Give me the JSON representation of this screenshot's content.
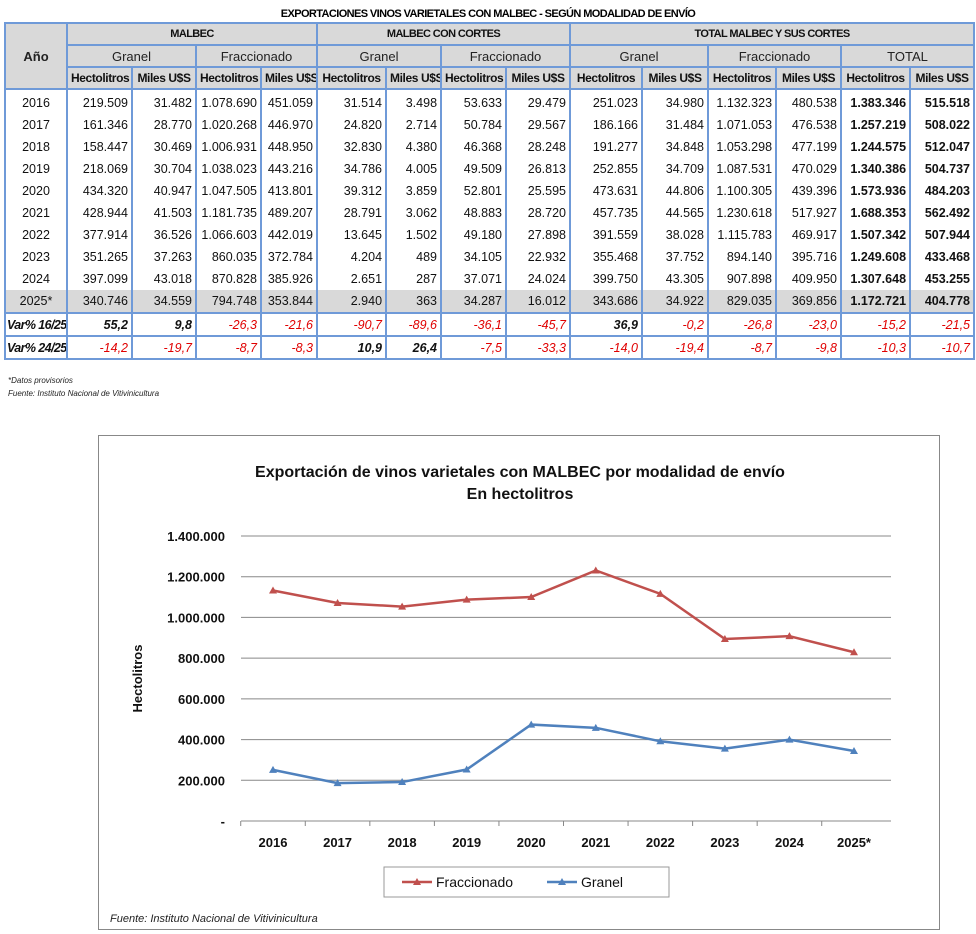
{
  "table": {
    "title": "EXPORTACIONES VINOS VARIETALES CON MALBEC - SEGÚN MODALIDAD DE ENVÍO",
    "year_header": "Año",
    "groups": [
      "MALBEC",
      "MALBEC CON CORTES",
      "TOTAL MALBEC Y SUS CORTES"
    ],
    "subgroups": [
      "Granel",
      "Fraccionado",
      "Granel",
      "Fraccionado",
      "Granel",
      "Fraccionado",
      "TOTAL"
    ],
    "columns": [
      "Hectolitros",
      "Miles U$S",
      "Hectolitros",
      "Miles U$S",
      "Hectolitros",
      "Miles U$S",
      "Hectolitros",
      "Miles U$S",
      "Hectolitros",
      "Miles U$S",
      "Hectolitros",
      "Miles U$S",
      "Hectolitros",
      "Miles U$S"
    ],
    "rows": [
      [
        "2016",
        "219.509",
        "31.482",
        "1.078.690",
        "451.059",
        "31.514",
        "3.498",
        "53.633",
        "29.479",
        "251.023",
        "34.980",
        "1.132.323",
        "480.538",
        "1.383.346",
        "515.518"
      ],
      [
        "2017",
        "161.346",
        "28.770",
        "1.020.268",
        "446.970",
        "24.820",
        "2.714",
        "50.784",
        "29.567",
        "186.166",
        "31.484",
        "1.071.053",
        "476.538",
        "1.257.219",
        "508.022"
      ],
      [
        "2018",
        "158.447",
        "30.469",
        "1.006.931",
        "448.950",
        "32.830",
        "4.380",
        "46.368",
        "28.248",
        "191.277",
        "34.848",
        "1.053.298",
        "477.199",
        "1.244.575",
        "512.047"
      ],
      [
        "2019",
        "218.069",
        "30.704",
        "1.038.023",
        "443.216",
        "34.786",
        "4.005",
        "49.509",
        "26.813",
        "252.855",
        "34.709",
        "1.087.531",
        "470.029",
        "1.340.386",
        "504.737"
      ],
      [
        "2020",
        "434.320",
        "40.947",
        "1.047.505",
        "413.801",
        "39.312",
        "3.859",
        "52.801",
        "25.595",
        "473.631",
        "44.806",
        "1.100.305",
        "439.396",
        "1.573.936",
        "484.203"
      ],
      [
        "2021",
        "428.944",
        "41.503",
        "1.181.735",
        "489.207",
        "28.791",
        "3.062",
        "48.883",
        "28.720",
        "457.735",
        "44.565",
        "1.230.618",
        "517.927",
        "1.688.353",
        "562.492"
      ],
      [
        "2022",
        "377.914",
        "36.526",
        "1.066.603",
        "442.019",
        "13.645",
        "1.502",
        "49.180",
        "27.898",
        "391.559",
        "38.028",
        "1.115.783",
        "469.917",
        "1.507.342",
        "507.944"
      ],
      [
        "2023",
        "351.265",
        "37.263",
        "860.035",
        "372.784",
        "4.204",
        "489",
        "34.105",
        "22.932",
        "355.468",
        "37.752",
        "894.140",
        "395.716",
        "1.249.608",
        "433.468"
      ],
      [
        "2024",
        "397.099",
        "43.018",
        "870.828",
        "385.926",
        "2.651",
        "287",
        "37.071",
        "24.024",
        "399.750",
        "43.305",
        "907.898",
        "409.950",
        "1.307.648",
        "453.255"
      ],
      [
        "2025*",
        "340.746",
        "34.559",
        "794.748",
        "353.844",
        "2.940",
        "363",
        "34.287",
        "16.012",
        "343.686",
        "34.922",
        "829.035",
        "369.856",
        "1.172.721",
        "404.778"
      ]
    ],
    "variations": [
      [
        "Var% 16/25",
        "55,2",
        "9,8",
        "-26,3",
        "-21,6",
        "-90,7",
        "-89,6",
        "-36,1",
        "-45,7",
        "36,9",
        "-0,2",
        "-26,8",
        "-23,0",
        "-15,2",
        "-21,5"
      ],
      [
        "Var% 24/25",
        "-14,2",
        "-19,7",
        "-8,7",
        "-8,3",
        "10,9",
        "26,4",
        "-7,5",
        "-33,3",
        "-14,0",
        "-19,4",
        "-8,7",
        "-9,8",
        "-10,3",
        "-10,7"
      ]
    ],
    "footnote": "*Datos provisorios",
    "source": "Fuente: Instituto Nacional de Vitivinicultura"
  },
  "chart_data": {
    "type": "line",
    "title": "Exportación de vinos varietales con MALBEC por modalidad de envío",
    "subtitle": "En hectolitros",
    "xlabel": "",
    "ylabel": "Hectolitros",
    "categories": [
      "2016",
      "2017",
      "2018",
      "2019",
      "2020",
      "2021",
      "2022",
      "2023",
      "2024",
      "2025*"
    ],
    "ylim": [
      0,
      1400000
    ],
    "yticks": [
      0,
      200000,
      400000,
      600000,
      800000,
      1000000,
      1200000,
      1400000
    ],
    "ytick_labels": [
      "-",
      "200.000",
      "400.000",
      "600.000",
      "800.000",
      "1.000.000",
      "1.200.000",
      "1.400.000"
    ],
    "grid": true,
    "legend_position": "bottom",
    "series": [
      {
        "name": "Fraccionado",
        "color": "#c0504d",
        "values": [
          1132323,
          1071053,
          1053298,
          1087531,
          1100305,
          1230618,
          1115783,
          894140,
          907898,
          829035
        ]
      },
      {
        "name": "Granel",
        "color": "#4f81bd",
        "values": [
          251023,
          186166,
          191277,
          252855,
          473631,
          457735,
          391559,
          355468,
          399750,
          343686
        ]
      }
    ],
    "source": "Fuente: Instituto Nacional de Vitivinicultura"
  }
}
